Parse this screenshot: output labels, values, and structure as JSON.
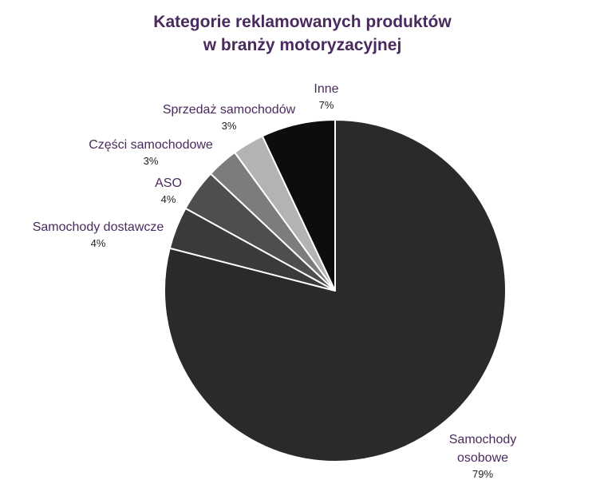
{
  "chart_data": {
    "type": "pie",
    "title_lines": [
      "Kategorie reklamowanych produktów",
      "w branży motoryzacyjnej"
    ],
    "slices": [
      {
        "label_lines": [
          "Samochody",
          "osobowe"
        ],
        "value": 79,
        "value_label": "79%",
        "color": "#2a2a2a"
      },
      {
        "label_lines": [
          "Samochody dostawcze"
        ],
        "value": 4,
        "value_label": "4%",
        "color": "#3a3a3a"
      },
      {
        "label_lines": [
          "ASO"
        ],
        "value": 4,
        "value_label": "4%",
        "color": "#4e4e4e"
      },
      {
        "label_lines": [
          "Części samochodowe"
        ],
        "value": 3,
        "value_label": "3%",
        "color": "#7c7c7c"
      },
      {
        "label_lines": [
          "Sprzedaż samochodów"
        ],
        "value": 3,
        "value_label": "3%",
        "color": "#b3b3b3"
      },
      {
        "label_lines": [
          "Inne"
        ],
        "value": 7,
        "value_label": "7%",
        "color": "#0d0d0d"
      }
    ],
    "legend": "none",
    "border_color": "#ffffff"
  }
}
